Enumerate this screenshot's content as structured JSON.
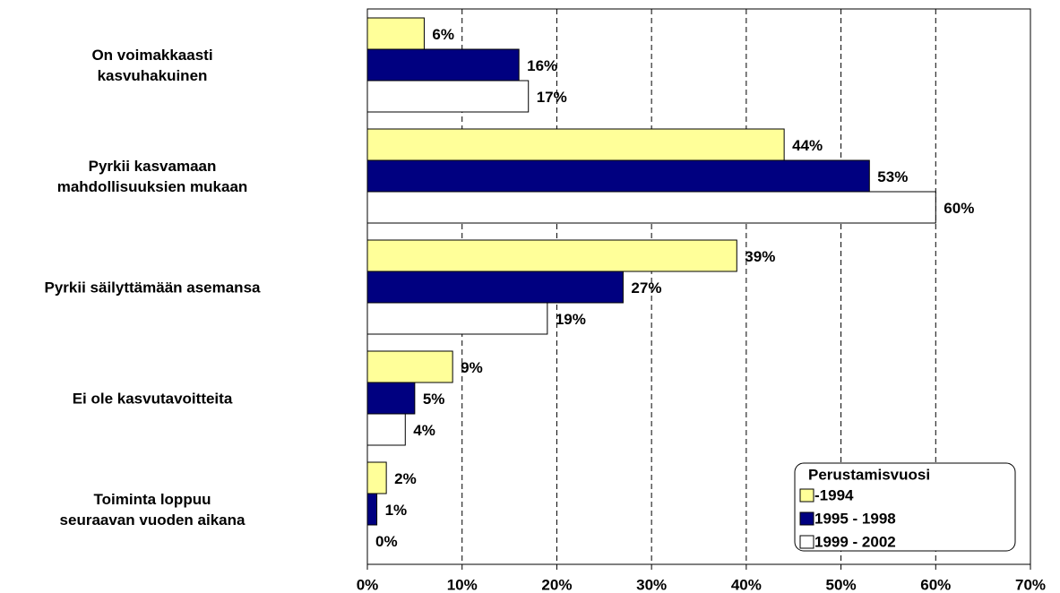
{
  "chart_data": {
    "type": "bar",
    "orientation": "horizontal",
    "categories": [
      "On voimakkaasti\nkasvuhakuinen",
      "Pyrkii kasvamaan\nmahdollisuuksien mukaan",
      "Pyrkii säilyttämään asemansa",
      "Ei ole kasvutavoitteita",
      "Toiminta loppuu\nseuraavan vuoden aikana"
    ],
    "series": [
      {
        "name": "-1994",
        "color": "#ffff99",
        "values": [
          6,
          44,
          39,
          9,
          2
        ],
        "value_labels": [
          "6%",
          "44%",
          "39%",
          "9%",
          "2%"
        ]
      },
      {
        "name": "1995 - 1998",
        "color": "#000080",
        "values": [
          16,
          53,
          27,
          5,
          1
        ],
        "value_labels": [
          "16%",
          "53%",
          "27%",
          "5%",
          "1%"
        ]
      },
      {
        "name": "1999 - 2002",
        "color": "#ffffff",
        "values": [
          17,
          60,
          19,
          4,
          0
        ],
        "value_labels": [
          "17%",
          "60%",
          "19%",
          "4%",
          "0%"
        ]
      }
    ],
    "xlim": [
      0,
      70
    ],
    "xticks": [
      {
        "value": 0,
        "label": "0%"
      },
      {
        "value": 10,
        "label": "10%"
      },
      {
        "value": 20,
        "label": "20%"
      },
      {
        "value": 30,
        "label": "30%"
      },
      {
        "value": 40,
        "label": "40%"
      },
      {
        "value": 50,
        "label": "50%"
      },
      {
        "value": 60,
        "label": "60%"
      },
      {
        "value": 70,
        "label": "70%"
      }
    ],
    "grid": true,
    "legend_title": "Perustamisvuosi",
    "legend_position": "lower right"
  }
}
